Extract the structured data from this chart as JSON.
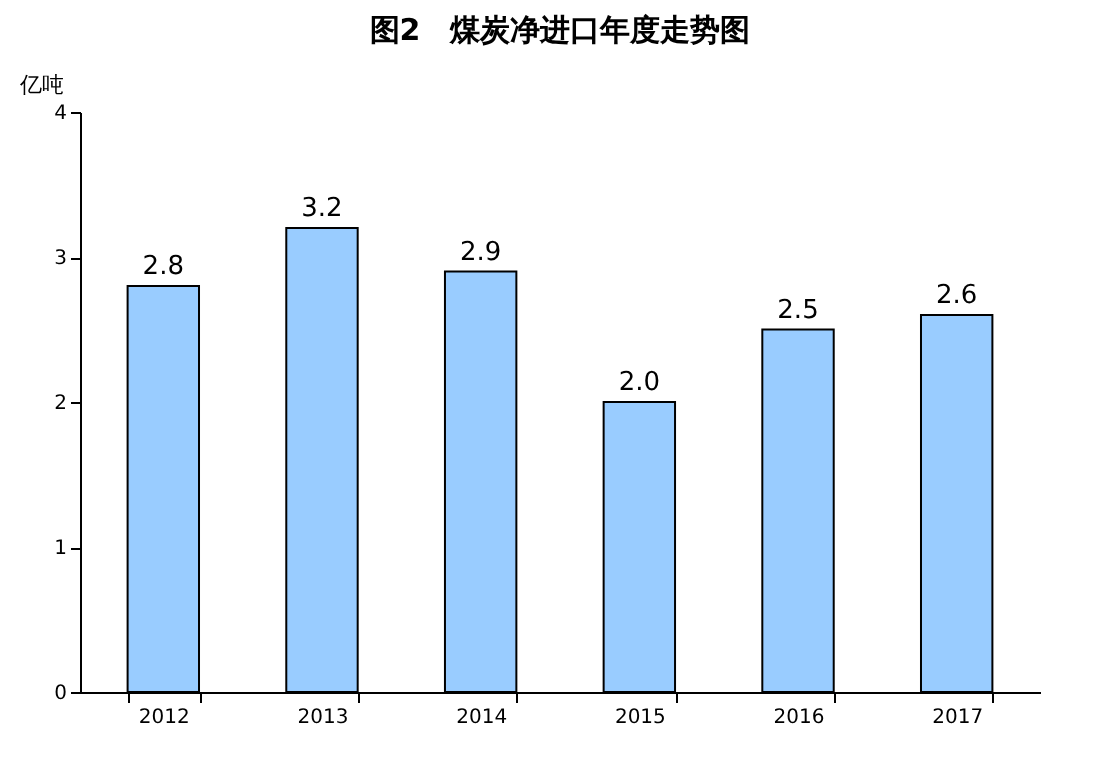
{
  "chart_data": {
    "type": "bar",
    "title": "图2　煤炭净进口年度走势图",
    "ylabel": "亿吨",
    "categories": [
      "2012",
      "2013",
      "2014",
      "2015",
      "2016",
      "2017"
    ],
    "series": [
      {
        "color": "#99ccff",
        "values": [
          2.8,
          3.2,
          2.9,
          2.0,
          2.5,
          2.6
        ],
        "value_labels": [
          "2.8",
          "3.2",
          "2.9",
          "2.0",
          "2.5",
          "2.6"
        ]
      }
    ],
    "ylim": [
      0,
      4
    ],
    "yticks": [
      0,
      1,
      2,
      3,
      4
    ],
    "grid": false
  }
}
